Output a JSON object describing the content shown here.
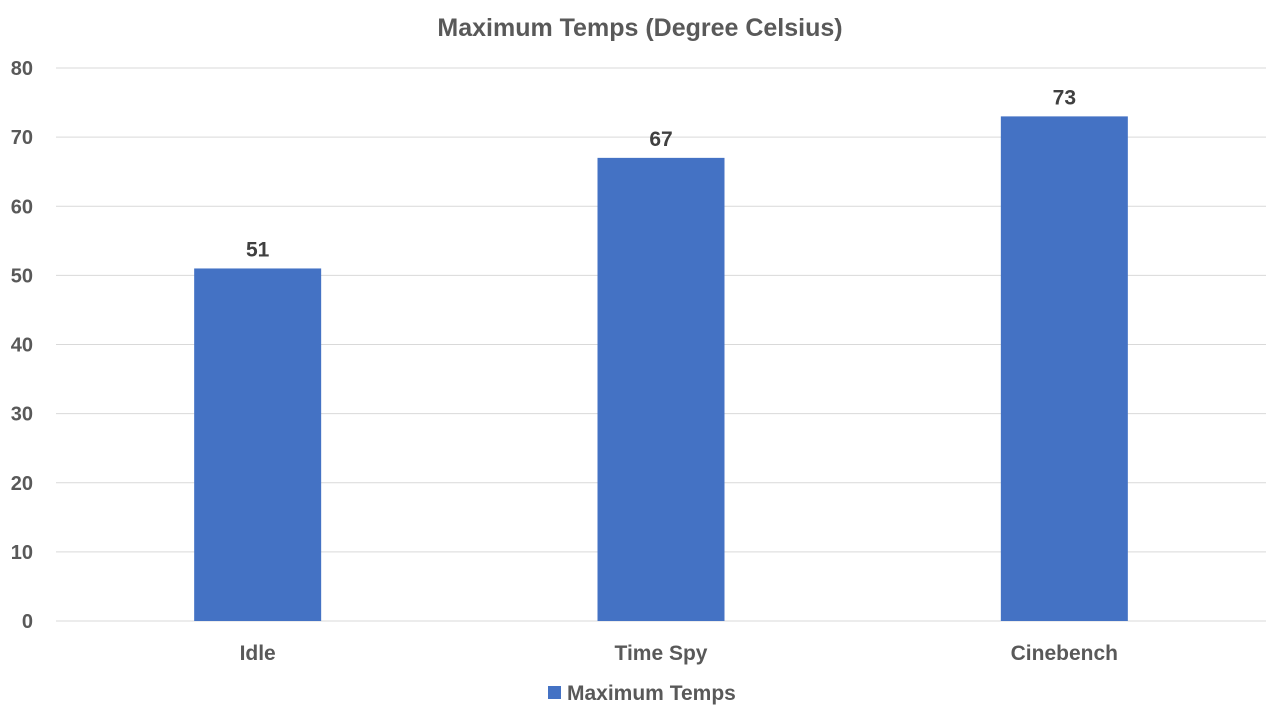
{
  "chart_data": {
    "type": "bar",
    "title": "Maximum Temps (Degree Celsius)",
    "xlabel": "",
    "ylabel": "",
    "categories": [
      "Idle",
      "Time Spy",
      "Cinebench"
    ],
    "series": [
      {
        "name": "Maximum Temps",
        "values": [
          51,
          67,
          73
        ],
        "color": "#4472C4"
      }
    ],
    "ylim": [
      0,
      80
    ],
    "yticks": [
      0,
      10,
      20,
      30,
      40,
      50,
      60,
      70,
      80
    ],
    "grid": true,
    "legend_position": "bottom",
    "data_labels": true
  },
  "colors": {
    "background": "#FFFFFF",
    "gridline": "#D9D9D9",
    "text": "#595959",
    "label_text": "#404040"
  }
}
